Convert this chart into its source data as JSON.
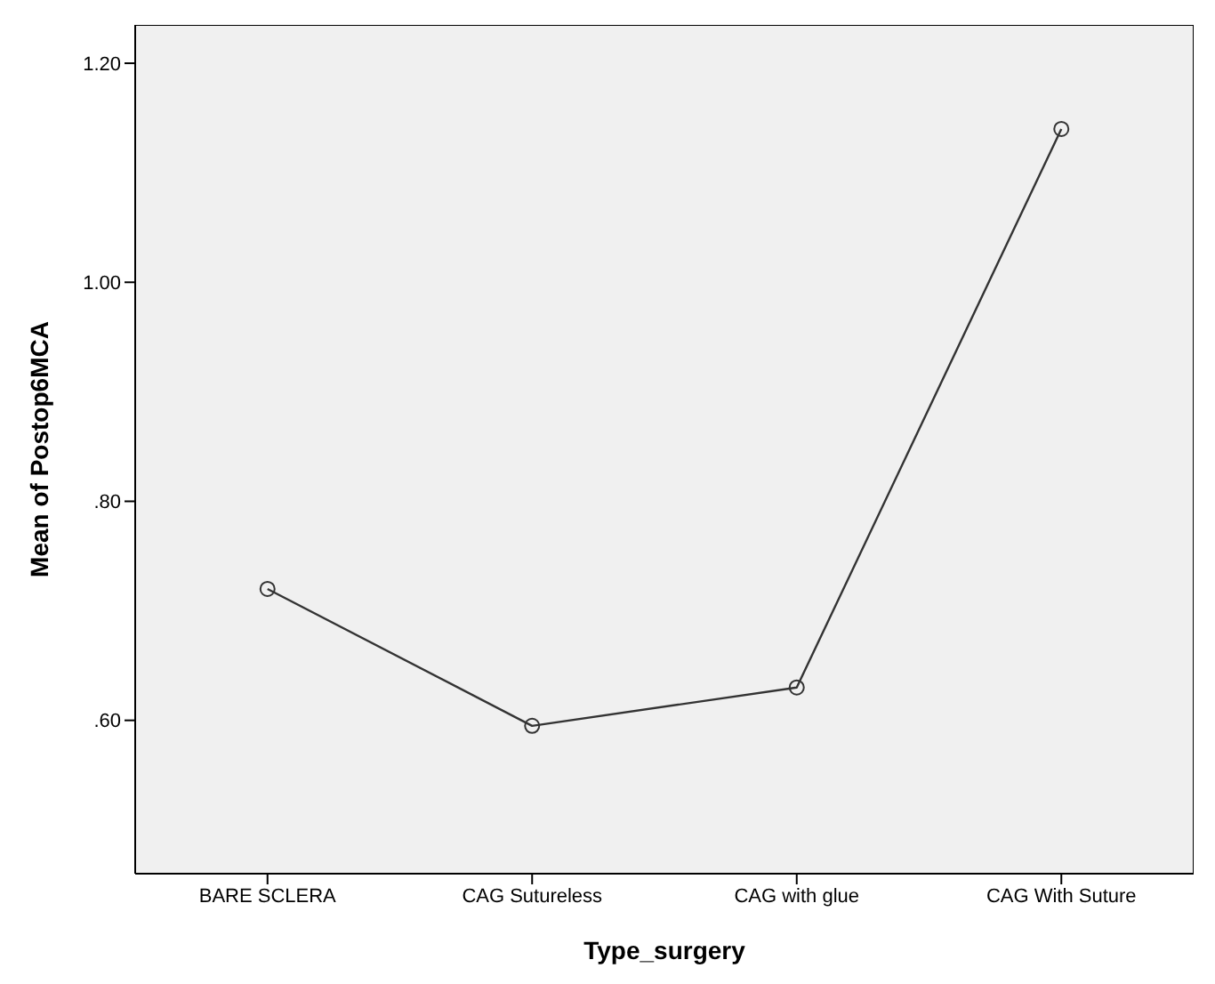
{
  "chart_data": {
    "type": "line",
    "xlabel": "Type_surgery",
    "ylabel": "Mean of Postop6MCA",
    "categories": [
      "BARE SCLERA",
      "CAG Sutureless",
      "CAG with glue",
      "CAG With Suture"
    ],
    "series": [
      {
        "color": "#333333",
        "values": [
          0.72,
          0.595,
          0.63,
          1.14
        ]
      }
    ],
    "ylim": [
      0.46,
      1.235
    ],
    "yticks": [
      {
        "value": 0.6,
        "label": ".60"
      },
      {
        "value": 0.8,
        "label": ".80"
      },
      {
        "value": 1.0,
        "label": "1.00"
      },
      {
        "value": 1.2,
        "label": "1.20"
      }
    ],
    "marker": "circle",
    "line_style": "solid",
    "grid": false,
    "legend": false
  }
}
